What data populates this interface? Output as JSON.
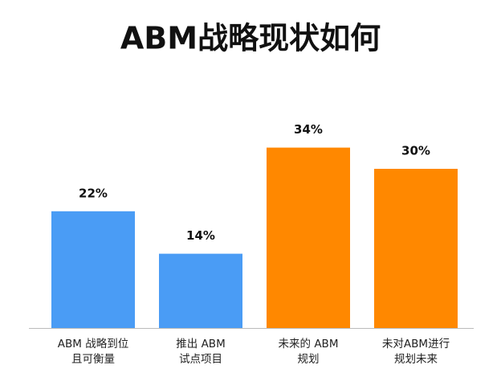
{
  "chart_data": {
    "type": "bar",
    "title": "ABM战略现状如何",
    "categories": [
      [
        "ABM 战略到位",
        "且可衡量"
      ],
      [
        "推出 ABM",
        "试点项目"
      ],
      [
        "未来的 ABM",
        "规划"
      ],
      [
        "未对ABM进行",
        "规划未来"
      ]
    ],
    "values": [
      22,
      14,
      34,
      30
    ],
    "value_labels": [
      "22%",
      "14%",
      "34%",
      "30%"
    ],
    "colors": [
      "#4a9cf5",
      "#4a9cf5",
      "#ff8800",
      "#ff8800"
    ]
  }
}
